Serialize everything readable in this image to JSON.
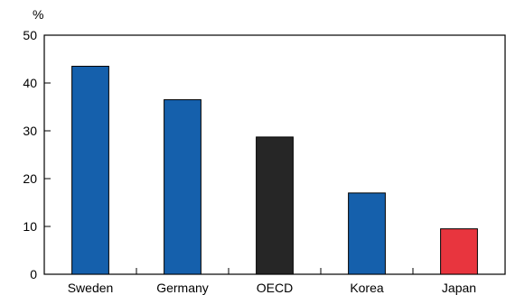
{
  "chart_data": {
    "type": "bar",
    "unit": "%",
    "categories": [
      "Sweden",
      "Germany",
      "OECD",
      "Korea",
      "Japan"
    ],
    "values": [
      43.5,
      36.5,
      28.7,
      17.0,
      9.5
    ],
    "colors": [
      "#1560ac",
      "#1560ac",
      "#262626",
      "#1560ac",
      "#e8353e"
    ],
    "ylim": [
      0,
      50
    ],
    "yticks": [
      "0",
      "10",
      "20",
      "30",
      "40",
      "50"
    ],
    "grid": false,
    "legend": "none"
  }
}
